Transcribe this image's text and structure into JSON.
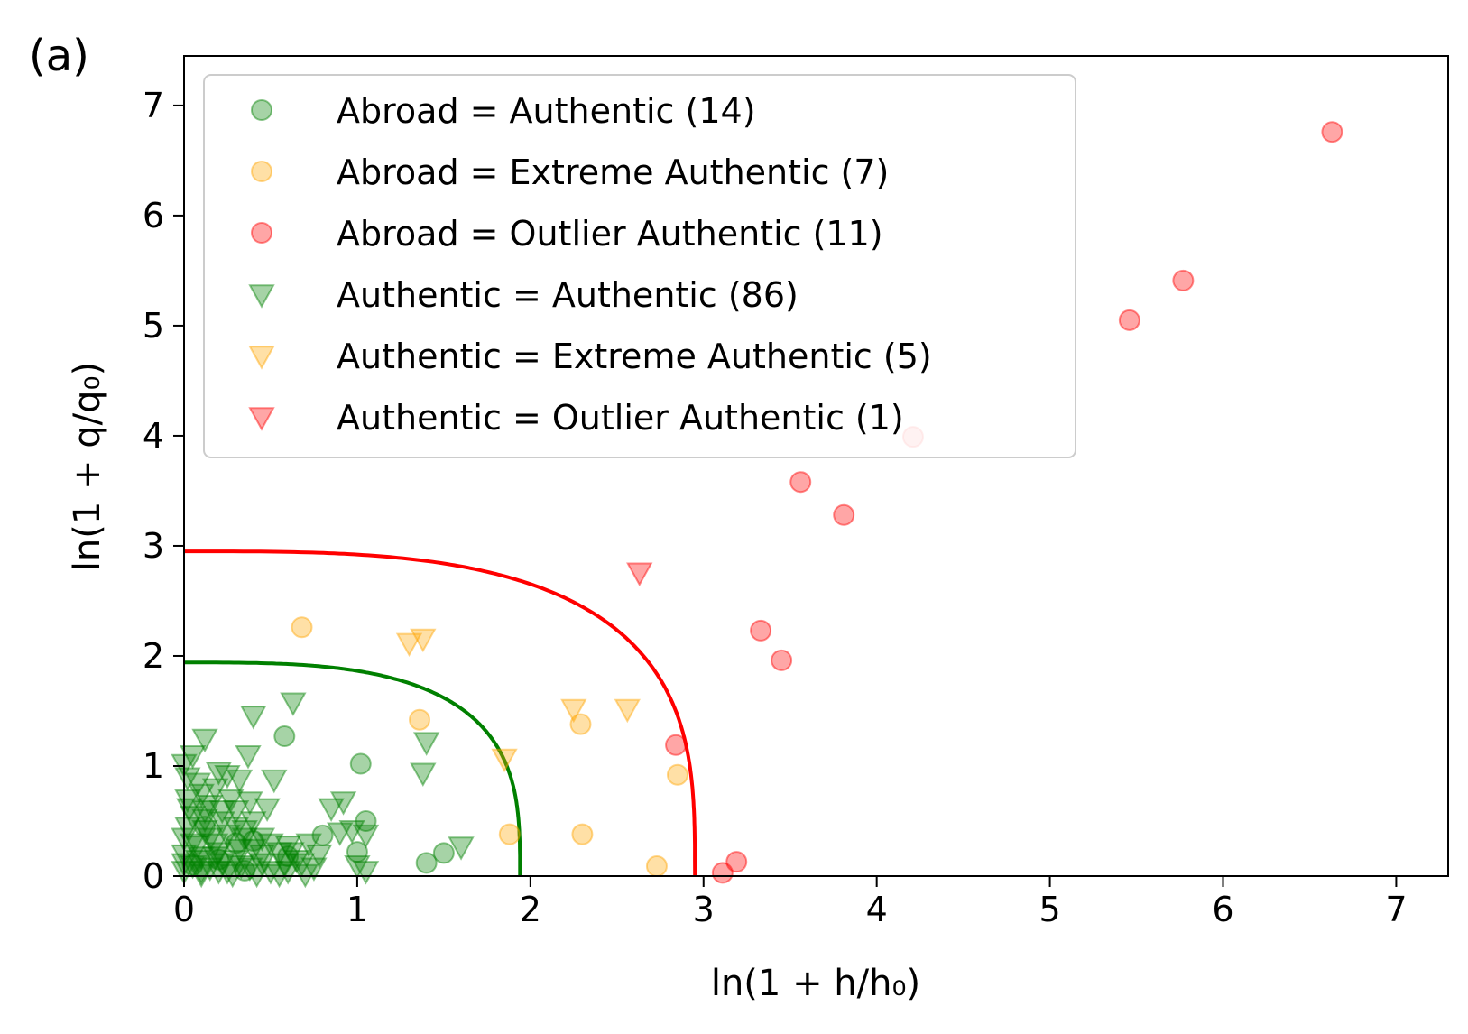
{
  "panel_label": "(a)",
  "chart_data": {
    "type": "scatter",
    "xlabel": "ln(1 + h/h₀)",
    "ylabel": "ln(1 + q/q₀)",
    "xlim": [
      0,
      7.3
    ],
    "ylim": [
      0,
      7.45
    ],
    "xticks": [
      "0",
      "1",
      "2",
      "3",
      "4",
      "5",
      "6",
      "7"
    ],
    "yticks": [
      "0",
      "1",
      "2",
      "3",
      "4",
      "5",
      "6",
      "7"
    ],
    "grid": false,
    "legend_position": "upper-left",
    "colors": {
      "green": "#008000",
      "orange": "#ffa500",
      "red": "#ff0000"
    },
    "series": [
      {
        "name": "Abroad = Authentic (14)",
        "marker": "circle",
        "color": "#008000",
        "points": [
          [
            0.58,
            1.27
          ],
          [
            1.02,
            1.02
          ],
          [
            1.05,
            0.5
          ],
          [
            0.8,
            0.37
          ],
          [
            1.0,
            0.22
          ],
          [
            1.4,
            0.12
          ],
          [
            1.5,
            0.21
          ],
          [
            0.3,
            0.3
          ],
          [
            0.12,
            0.45
          ],
          [
            0.4,
            0.32
          ],
          [
            0.05,
            0.1
          ],
          [
            0.2,
            0.15
          ],
          [
            0.35,
            0.05
          ],
          [
            0.6,
            0.18
          ]
        ]
      },
      {
        "name": "Abroad = Extreme Authentic (7)",
        "marker": "circle",
        "color": "#ffa500",
        "points": [
          [
            0.68,
            2.26
          ],
          [
            1.36,
            1.42
          ],
          [
            2.29,
            1.38
          ],
          [
            2.85,
            0.92
          ],
          [
            1.88,
            0.38
          ],
          [
            2.3,
            0.38
          ],
          [
            2.73,
            0.09
          ]
        ]
      },
      {
        "name": "Abroad = Outlier Authentic (11)",
        "marker": "circle",
        "color": "#ff0000",
        "points": [
          [
            6.63,
            6.76
          ],
          [
            5.77,
            5.41
          ],
          [
            5.46,
            5.05
          ],
          [
            4.21,
            3.99
          ],
          [
            3.56,
            3.58
          ],
          [
            3.81,
            3.28
          ],
          [
            3.33,
            2.23
          ],
          [
            3.45,
            1.96
          ],
          [
            2.84,
            1.19
          ],
          [
            3.19,
            0.13
          ],
          [
            3.11,
            0.03
          ]
        ]
      },
      {
        "name": "Authentic = Authentic (86)",
        "marker": "triangle-down",
        "color": "#008000",
        "points": [
          [
            0.63,
            1.58
          ],
          [
            0.4,
            1.46
          ],
          [
            0.37,
            1.1
          ],
          [
            0.52,
            0.88
          ],
          [
            0.32,
            0.88
          ],
          [
            0.2,
            0.95
          ],
          [
            0.12,
            1.25
          ],
          [
            0.05,
            1.1
          ],
          [
            0.0,
            1.02
          ],
          [
            0.25,
            0.92
          ],
          [
            0.1,
            0.75
          ],
          [
            0.02,
            0.7
          ],
          [
            0.15,
            0.65
          ],
          [
            0.48,
            0.62
          ],
          [
            0.3,
            0.6
          ],
          [
            0.22,
            0.5
          ],
          [
            0.05,
            0.55
          ],
          [
            0.4,
            0.5
          ],
          [
            0.35,
            0.42
          ],
          [
            0.12,
            0.42
          ],
          [
            0.0,
            0.35
          ],
          [
            0.25,
            0.38
          ],
          [
            0.45,
            0.35
          ],
          [
            0.18,
            0.3
          ],
          [
            0.08,
            0.28
          ],
          [
            0.32,
            0.25
          ],
          [
            0.55,
            0.22
          ],
          [
            0.6,
            0.28
          ],
          [
            0.2,
            0.22
          ],
          [
            0.0,
            0.2
          ],
          [
            0.1,
            0.18
          ],
          [
            0.3,
            0.15
          ],
          [
            0.45,
            0.12
          ],
          [
            0.65,
            0.15
          ],
          [
            0.72,
            0.3
          ],
          [
            0.68,
            0.12
          ],
          [
            0.22,
            0.12
          ],
          [
            0.05,
            0.1
          ],
          [
            0.15,
            0.08
          ],
          [
            0.38,
            0.08
          ],
          [
            0.5,
            0.05
          ],
          [
            0.6,
            0.05
          ],
          [
            0.0,
            0.05
          ],
          [
            0.1,
            0.02
          ],
          [
            0.28,
            0.02
          ],
          [
            0.42,
            0.02
          ],
          [
            0.55,
            0.02
          ],
          [
            0.7,
            0.02
          ],
          [
            0.85,
            0.62
          ],
          [
            0.92,
            0.68
          ],
          [
            0.97,
            0.42
          ],
          [
            0.9,
            0.4
          ],
          [
            1.05,
            0.38
          ],
          [
            1.4,
            1.22
          ],
          [
            1.38,
            0.94
          ],
          [
            1.6,
            0.27
          ],
          [
            1.0,
            0.1
          ],
          [
            1.05,
            0.05
          ],
          [
            0.02,
            0.9
          ],
          [
            0.08,
            0.85
          ],
          [
            0.18,
            0.8
          ],
          [
            0.27,
            0.7
          ],
          [
            0.38,
            0.68
          ],
          [
            0.12,
            0.6
          ],
          [
            0.02,
            0.45
          ],
          [
            0.35,
            0.35
          ],
          [
            0.5,
            0.3
          ],
          [
            0.15,
            0.35
          ],
          [
            0.08,
            0.15
          ],
          [
            0.25,
            0.05
          ],
          [
            0.33,
            0.1
          ],
          [
            0.45,
            0.2
          ],
          [
            0.58,
            0.12
          ],
          [
            0.75,
            0.08
          ],
          [
            0.78,
            0.2
          ],
          [
            0.62,
            0.22
          ],
          [
            0.2,
            0.05
          ],
          [
            0.0,
            0.12
          ],
          [
            0.05,
            0.3
          ],
          [
            0.3,
            0.45
          ],
          [
            0.4,
            0.25
          ],
          [
            0.12,
            0.52
          ],
          [
            0.22,
            0.6
          ],
          [
            0.03,
            0.62
          ],
          [
            0.18,
            0.18
          ],
          [
            0.1,
            0.05
          ]
        ]
      },
      {
        "name": "Authentic = Extreme Authentic (5)",
        "marker": "triangle-down",
        "color": "#ffa500",
        "points": [
          [
            1.3,
            2.12
          ],
          [
            1.38,
            2.16
          ],
          [
            1.85,
            1.07
          ],
          [
            2.25,
            1.52
          ],
          [
            2.56,
            1.52
          ]
        ]
      },
      {
        "name": "Authentic = Outlier Authentic (1)",
        "marker": "triangle-down",
        "color": "#ff0000",
        "points": [
          [
            2.63,
            2.76
          ]
        ]
      }
    ],
    "curves": [
      {
        "color": "#008000",
        "radius": 1.94,
        "exponent": 3.2
      },
      {
        "color": "#ff0000",
        "radius": 2.95,
        "exponent": 3.2
      }
    ]
  }
}
